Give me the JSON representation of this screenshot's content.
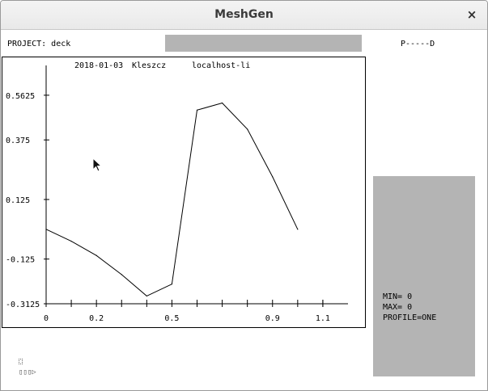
{
  "window": {
    "title": "MeshGen",
    "close_glyph": "×"
  },
  "header": {
    "project_label": "PROJECT: deck",
    "indicator_text": "P-----D"
  },
  "plot": {
    "info": {
      "date": "2018-01-03",
      "user": "Kleszcz",
      "host": "localhost-li"
    }
  },
  "chart_data": {
    "type": "line",
    "title": "",
    "xlabel": "",
    "ylabel": "",
    "xlim": [
      0,
      1.2
    ],
    "ylim": [
      -0.3125,
      0.6875
    ],
    "x_tick_labels": [
      {
        "value": 0,
        "label": "0"
      },
      {
        "value": 0.2,
        "label": "0.2"
      },
      {
        "value": 0.5,
        "label": "0.5"
      },
      {
        "value": 0.9,
        "label": "0.9"
      },
      {
        "value": 1.1,
        "label": "1.1"
      }
    ],
    "x_minor_ticks": [
      0.1,
      0.3,
      0.4,
      0.6,
      0.7,
      0.8,
      1.0,
      1.1
    ],
    "y_tick_labels": [
      {
        "value": 0.5625,
        "label": "0.5625"
      },
      {
        "value": 0.375,
        "label": "0.375"
      },
      {
        "value": 0.125,
        "label": "0.125"
      },
      {
        "value": -0.125,
        "label": "-0.125"
      },
      {
        "value": -0.3125,
        "label": "-0.3125"
      }
    ],
    "series": [
      {
        "x": [
          0.0,
          0.1,
          0.2,
          0.3,
          0.4,
          0.5,
          0.6,
          0.7,
          0.8,
          0.9,
          1.0
        ],
        "values": [
          0.0,
          -0.05,
          -0.11,
          -0.19,
          -0.28,
          -0.23,
          0.5,
          0.53,
          0.42,
          0.22,
          0.0
        ]
      }
    ],
    "grid": false,
    "legend": "none"
  },
  "side_panel": {
    "min_label": "MIN= 0",
    "max_label": "MAX= 0",
    "profile_label": "PROFILE=ONE"
  },
  "footer": {
    "glyph_label": "▯▯▯▷"
  },
  "icons": {
    "pointer": "arrow-cursor-icon"
  }
}
